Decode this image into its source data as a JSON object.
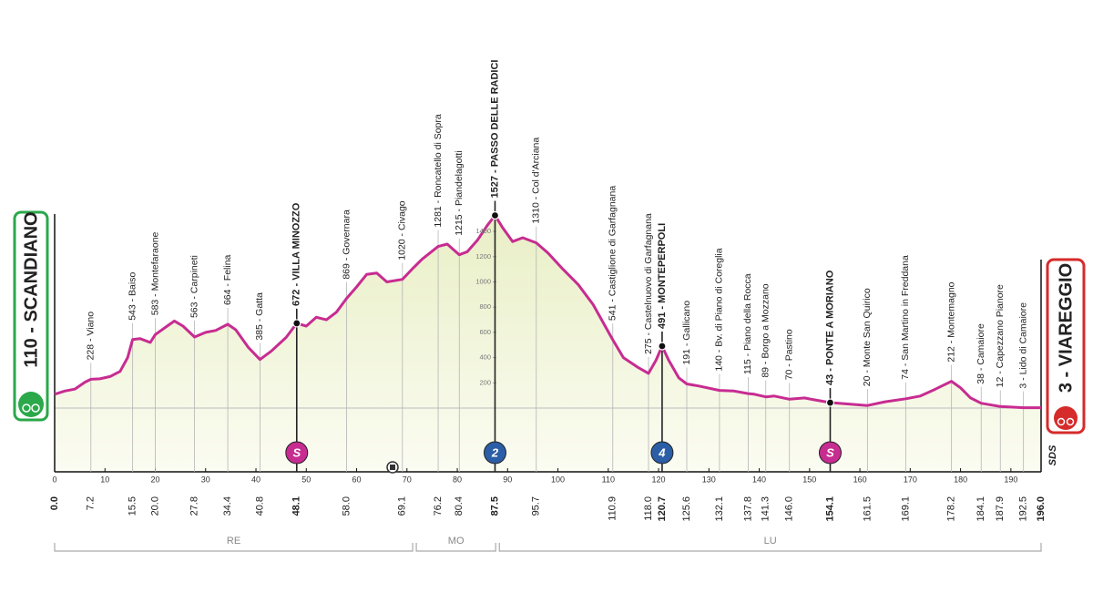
{
  "chart_data": {
    "type": "area",
    "start": {
      "name": "110 - SCANDIANO",
      "km": {
        "value": 0,
        "label": "0.0"
      }
    },
    "finish": {
      "name": "3 - VIAREGGIO",
      "km": {
        "value": 196,
        "label": "196.0"
      }
    },
    "sponsor": "SDS",
    "color": "#c72c91",
    "fill_color": "#e9efc6",
    "xlim": [
      0,
      196
    ],
    "ylim": [
      0,
      1600
    ],
    "xticks": [
      0,
      10,
      20,
      30,
      40,
      50,
      60,
      70,
      80,
      90,
      100,
      110,
      120,
      130,
      140,
      150,
      160,
      170,
      180,
      190
    ],
    "yticks": [
      200,
      400,
      600,
      800,
      1000,
      1200,
      1400
    ],
    "profile": {
      "x": [
        0,
        2,
        4,
        6,
        7.2,
        9,
        11,
        13,
        14.5,
        15.5,
        17,
        19,
        20,
        22,
        23.8,
        25.5,
        27.8,
        30,
        32,
        34.4,
        36,
        38.5,
        40.8,
        43,
        46,
        48.1,
        50,
        52,
        54,
        56,
        58,
        60,
        62,
        64,
        66,
        69.1,
        71,
        73,
        76.2,
        78,
        80.4,
        82,
        84,
        86,
        87.5,
        89,
        91,
        93,
        95.7,
        98,
        101,
        104,
        107,
        110.9,
        113,
        116,
        118,
        119.5,
        120.7,
        122,
        124,
        125.6,
        128,
        132.1,
        135,
        137.8,
        139,
        141.3,
        143,
        146,
        149,
        151,
        154.1,
        157,
        161.5,
        165,
        169.1,
        172,
        175,
        178.2,
        180,
        182,
        184.1,
        187.9,
        192.5,
        196
      ],
      "y": [
        110,
        135,
        150,
        205,
        228,
        232,
        250,
        290,
        400,
        543,
        550,
        520,
        583,
        640,
        690,
        650,
        563,
        600,
        615,
        664,
        620,
        480,
        385,
        450,
        560,
        672,
        650,
        720,
        700,
        760,
        869,
        960,
        1060,
        1070,
        1000,
        1020,
        1100,
        1180,
        1281,
        1300,
        1215,
        1240,
        1330,
        1450,
        1527,
        1430,
        1320,
        1350,
        1310,
        1230,
        1100,
        980,
        820,
        541,
        400,
        320,
        275,
        380,
        491,
        380,
        240,
        191,
        175,
        140,
        135,
        115,
        110,
        89,
        95,
        70,
        80,
        65,
        43,
        35,
        20,
        50,
        74,
        95,
        150,
        212,
        160,
        80,
        38,
        12,
        3,
        3
      ]
    },
    "waypoints": [
      {
        "name": "228 - Viano",
        "km": 7.2,
        "altitude": 228
      },
      {
        "name": "543 - Baiso",
        "km": 15.5,
        "altitude": 543
      },
      {
        "name": "583 - Montefaraone",
        "km": {
          "value": 20,
          "label": "20.0"
        },
        "altitude": 583
      },
      {
        "name": "563 - Carpineti",
        "km": 27.8,
        "altitude": 563
      },
      {
        "name": "664 - Felina",
        "km": 34.4,
        "altitude": 664
      },
      {
        "name": "385 - Gatta",
        "km": 40.8,
        "altitude": 385
      },
      {
        "name": "672 - VILLA MINOZZO",
        "km": 48.1,
        "altitude": 672,
        "emphasis": true,
        "badge": {
          "label": "S",
          "color": "#c72c91"
        }
      },
      {
        "name": "869 - Governara",
        "km": {
          "value": 58,
          "label": "58.0"
        },
        "altitude": 869
      },
      {
        "name": "1020 - Civago",
        "km": 69.1,
        "altitude": 1020
      },
      {
        "name": "1281 - Roncatello di Sopra",
        "km": 76.2,
        "altitude": 1281
      },
      {
        "name": "1215 - Piandelagotti",
        "km": 80.4,
        "altitude": 1215
      },
      {
        "name": "1527 - PASSO DELLE RADICI",
        "km": 87.5,
        "altitude": 1527,
        "emphasis": true,
        "badge": {
          "label": "2",
          "color": "#2b5ea6"
        }
      },
      {
        "name": "1310 - Col d'Arciana",
        "km": 95.7,
        "altitude": 1310
      },
      {
        "name": "541 - Castiglione di Garfagnana",
        "km": 110.9,
        "altitude": 541
      },
      {
        "name": "275 - Castelnuovo di Garfagnana",
        "km": {
          "value": 118,
          "label": "118.0"
        },
        "altitude": 275
      },
      {
        "name": "491 - MONTEPERPOLI",
        "km": 120.7,
        "altitude": 491,
        "emphasis": true,
        "badge": {
          "label": "4",
          "color": "#2b5ea6"
        }
      },
      {
        "name": "191 - Gallicano",
        "km": 125.6,
        "altitude": 191
      },
      {
        "name": "140 - Bv. di Piano di Coreglia",
        "km": 132.1,
        "altitude": 140
      },
      {
        "name": "115 - Piano della Rocca",
        "km": 137.8,
        "altitude": 115
      },
      {
        "name": "89 - Borgo a Mozzano",
        "km": 141.3,
        "altitude": 89
      },
      {
        "name": "70 - Pastino",
        "km": {
          "value": 146,
          "label": "146.0"
        },
        "altitude": 70
      },
      {
        "name": "43 - PONTE A MORIANO",
        "km": 154.1,
        "altitude": 43,
        "emphasis": true,
        "badge": {
          "label": "S",
          "color": "#c72c91"
        }
      },
      {
        "name": "20 - Monte San Quirico",
        "km": 161.5,
        "altitude": 20
      },
      {
        "name": "74 - San Martino in Freddana",
        "km": 169.1,
        "altitude": 74
      },
      {
        "name": "212 - Montemagno",
        "km": 178.2,
        "altitude": 212
      },
      {
        "name": "38 - Camaiore",
        "km": 184.1,
        "altitude": 38
      },
      {
        "name": "12 - Capezzano Pianore",
        "km": 187.9,
        "altitude": 12
      },
      {
        "name": "3 - Lido di Camaiore",
        "km": 192.5,
        "altitude": 3
      }
    ],
    "regions": [
      {
        "name": "RE",
        "from": 0,
        "to": 71.5
      },
      {
        "name": "MO",
        "from": 71.5,
        "to": 88
      },
      {
        "name": "LU",
        "from": 88,
        "to": 196
      }
    ]
  }
}
